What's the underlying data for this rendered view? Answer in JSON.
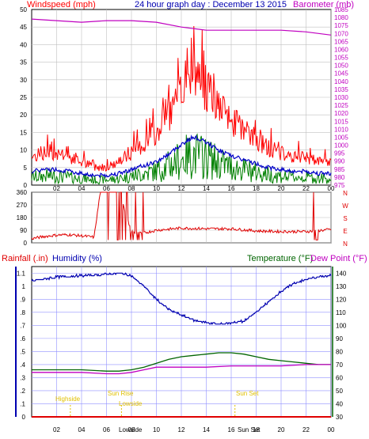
{
  "panels": {
    "wind": {
      "left_label": "Windspeed (mph)",
      "title": "24 hour graph day : December 13 2015",
      "right_label": "Barometer (mb)"
    },
    "dir": {
      "compass": [
        "N",
        "W",
        "S",
        "E",
        "N"
      ]
    },
    "bottom": {
      "rain_label": "Rainfall (.in)",
      "hum_label": "Humidity (%)",
      "temp_label": "Temperature (°F)",
      "dew_label": "Dew Point (°F)",
      "events": {
        "highside": "Highside",
        "sunrise": "Sun Rise",
        "lowside": "Lowside",
        "sunset": "Sun Set",
        "lowside_axis": "Lowside",
        "sunset_axis": "Sun Set"
      }
    }
  },
  "colors": {
    "wind": "#ff0000",
    "gust": "#ff0000",
    "avg": "#0000c8",
    "green": "#008000",
    "baro": "#c000c0",
    "dir": "#e00000",
    "humidity": "#0000b0",
    "temp": "#006400",
    "dew": "#c000c0",
    "rain": "#e00000",
    "events": "#e0c000",
    "grid": "#c0c0c0",
    "bluegrid": "#9090ff"
  },
  "chart_data": [
    {
      "type": "line",
      "title": "24 hour graph day : December 13 2015",
      "x_ticks": [
        "02",
        "04",
        "06",
        "08",
        "10",
        "12",
        "14",
        "16",
        "18",
        "20",
        "22",
        "00"
      ],
      "ylabel": "Windspeed (mph)",
      "ylim": [
        0,
        50
      ],
      "y_ticks": [
        0,
        5,
        10,
        15,
        20,
        25,
        30,
        35,
        40,
        45,
        50
      ],
      "y2label": "Barometer (mb)",
      "y2lim": [
        975,
        1085
      ],
      "y2_ticks": [
        975,
        980,
        985,
        990,
        995,
        1000,
        1005,
        1010,
        1015,
        1020,
        1025,
        1030,
        1035,
        1040,
        1045,
        1050,
        1055,
        1060,
        1065,
        1070,
        1075,
        1080,
        1085
      ],
      "series": [
        {
          "name": "Windspeed (mph)",
          "x": [
            0,
            1,
            2,
            3,
            4,
            5,
            6,
            7,
            8,
            9,
            10,
            11,
            12,
            13,
            14,
            15,
            16,
            17,
            18,
            19,
            20,
            21,
            22,
            23,
            24
          ],
          "values": [
            6,
            7,
            7,
            6,
            5,
            4,
            4,
            5,
            7,
            9,
            11,
            15,
            20,
            24,
            21,
            17,
            14,
            12,
            10,
            8,
            7,
            6,
            6,
            5,
            5
          ]
        },
        {
          "name": "Barometer (mb)",
          "x": [
            0,
            2,
            4,
            6,
            8,
            10,
            12,
            14,
            16,
            18,
            20,
            22,
            24
          ],
          "values": [
            1079,
            1078,
            1077,
            1078,
            1078,
            1077,
            1074,
            1072,
            1072,
            1072,
            1072,
            1071,
            1069
          ]
        }
      ]
    },
    {
      "type": "line",
      "x_ticks": [
        "02",
        "04",
        "06",
        "08",
        "10",
        "12",
        "14",
        "16",
        "18",
        "20",
        "22",
        "00"
      ],
      "ylim": [
        0,
        360
      ],
      "y_ticks": [
        0,
        90,
        180,
        270,
        360
      ],
      "series": [
        {
          "x": [
            0,
            1,
            2,
            3,
            4,
            5,
            5.5,
            6,
            7,
            8,
            9,
            10,
            12,
            14,
            16,
            18,
            20,
            22,
            24
          ],
          "values": [
            30,
            45,
            55,
            58,
            50,
            40,
            360,
            360,
            360,
            80,
            70,
            90,
            105,
            100,
            100,
            85,
            80,
            80,
            95
          ]
        }
      ]
    },
    {
      "type": "line",
      "x_ticks": [
        "02",
        "04",
        "06",
        "08",
        "10",
        "12",
        "14",
        "16",
        "18",
        "20",
        "22",
        "00"
      ],
      "ylabel": "Rainfall (.in)",
      "ylim": [
        0,
        1.15
      ],
      "y_ticks": [
        0,
        0.1,
        0.2,
        0.3,
        0.4,
        0.5,
        0.6,
        0.7,
        0.8,
        0.9,
        1,
        1.1
      ],
      "y2label": "Temperature (°F)",
      "y2lim": [
        30,
        145
      ],
      "y2_ticks": [
        30,
        40,
        50,
        60,
        70,
        80,
        90,
        100,
        110,
        120,
        130,
        140
      ],
      "series": [
        {
          "name": "Rainfall (.in)",
          "x": [
            0,
            24
          ],
          "values": [
            0,
            0
          ]
        },
        {
          "name": "Humidity (%)",
          "x": [
            0,
            2,
            4,
            6,
            7,
            8,
            9,
            10,
            11,
            12,
            13,
            14,
            15,
            16,
            17,
            18,
            19,
            20,
            21,
            22,
            23,
            24
          ],
          "values": [
            134,
            137,
            138,
            139,
            140,
            138,
            130,
            120,
            112,
            108,
            104,
            102,
            101,
            102,
            103,
            110,
            118,
            126,
            132,
            135,
            137,
            138
          ]
        },
        {
          "name": "Temperature (°F)",
          "x": [
            0,
            2,
            4,
            6,
            7,
            8,
            9,
            10,
            11,
            12,
            13,
            14,
            15,
            16,
            17,
            18,
            19,
            20,
            21,
            22,
            23,
            24
          ],
          "values": [
            66,
            66,
            66,
            65,
            65,
            66,
            68,
            71,
            74,
            76,
            77,
            78,
            79,
            79,
            78,
            76,
            74,
            73,
            72,
            71,
            70,
            70
          ]
        },
        {
          "name": "Dew Point (°F)",
          "x": [
            0,
            2,
            4,
            6,
            7,
            8,
            9,
            10,
            11,
            12,
            13,
            14,
            16,
            18,
            20,
            22,
            24
          ],
          "values": [
            64,
            64,
            64,
            63,
            63,
            64,
            66,
            68,
            68,
            68,
            68,
            68,
            69,
            69,
            69,
            70,
            70
          ]
        }
      ]
    }
  ]
}
